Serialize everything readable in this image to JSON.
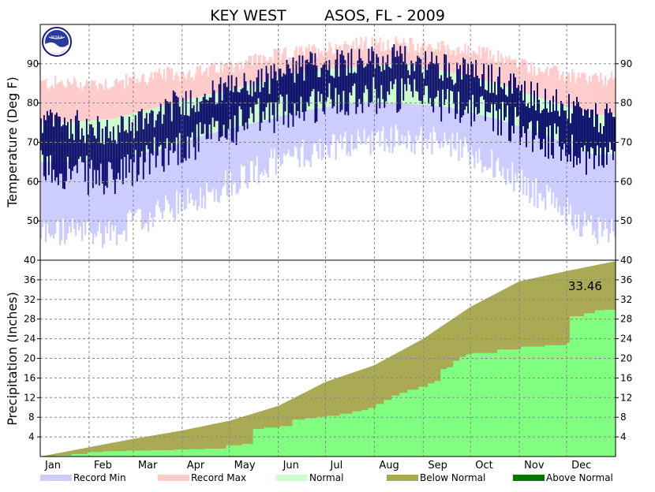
{
  "chart_data": {
    "type": "area",
    "title": "KEY WEST        ASOS, FL - 2009",
    "months": [
      "Jan",
      "Feb",
      "Mar",
      "Apr",
      "May",
      "Jun",
      "Jul",
      "Aug",
      "Sep",
      "Oct",
      "Nov",
      "Dec"
    ],
    "grid": true,
    "legend_position": "bottom",
    "legend": [
      {
        "label": "Record Min",
        "color": "#ccccff"
      },
      {
        "label": "Record Max",
        "color": "#ffcccc"
      },
      {
        "label": "Normal",
        "color": "#ccffcc"
      },
      {
        "label": "Below Normal",
        "color": "#aaaa55"
      },
      {
        "label": "Above Normal",
        "color": "#007700"
      }
    ],
    "temperature": {
      "ylabel": "Temperature (Deg F)",
      "ylim": [
        40,
        100
      ],
      "yticks": [
        50,
        60,
        70,
        80,
        90
      ],
      "colors": {
        "record": "#ffcccc",
        "recmin": "#ccccff",
        "normal": "#ccffcc",
        "observed": "#000066"
      },
      "monthly": [
        {
          "month": "Jan",
          "rec_max": 85,
          "normal_high": 75,
          "normal_low": 65,
          "rec_min": 47,
          "obs_high": 75,
          "obs_low": 63
        },
        {
          "month": "Feb",
          "rec_max": 85,
          "normal_high": 76,
          "normal_low": 66,
          "rec_min": 47,
          "obs_high": 72,
          "obs_low": 60
        },
        {
          "month": "Mar",
          "rec_max": 87,
          "normal_high": 79,
          "normal_low": 68,
          "rec_min": 52,
          "obs_high": 78,
          "obs_low": 67
        },
        {
          "month": "Apr",
          "rec_max": 88,
          "normal_high": 82,
          "normal_low": 72,
          "rec_min": 57,
          "obs_high": 82,
          "obs_low": 71
        },
        {
          "month": "May",
          "rec_max": 91,
          "normal_high": 85,
          "normal_low": 75,
          "rec_min": 63,
          "obs_high": 85,
          "obs_low": 76
        },
        {
          "month": "Jun",
          "rec_max": 93,
          "normal_high": 88,
          "normal_low": 78,
          "rec_min": 67,
          "obs_high": 89,
          "obs_low": 79
        },
        {
          "month": "Jul",
          "rec_max": 95,
          "normal_high": 89,
          "normal_low": 80,
          "rec_min": 70,
          "obs_high": 91,
          "obs_low": 82
        },
        {
          "month": "Aug",
          "rec_max": 95,
          "normal_high": 90,
          "normal_low": 80,
          "rec_min": 71,
          "obs_high": 91,
          "obs_low": 82
        },
        {
          "month": "Sep",
          "rec_max": 94,
          "normal_high": 88,
          "normal_low": 79,
          "rec_min": 70,
          "obs_high": 89,
          "obs_low": 80
        },
        {
          "month": "Oct",
          "rec_max": 92,
          "normal_high": 85,
          "normal_low": 76,
          "rec_min": 64,
          "obs_high": 86,
          "obs_low": 77
        },
        {
          "month": "Nov",
          "rec_max": 88,
          "normal_high": 81,
          "normal_low": 72,
          "rec_min": 56,
          "obs_high": 81,
          "obs_low": 71
        },
        {
          "month": "Dec",
          "rec_max": 86,
          "normal_high": 77,
          "normal_low": 67,
          "rec_min": 48,
          "obs_high": 76,
          "obs_low": 66
        }
      ]
    },
    "precipitation": {
      "ylabel": "Precipitation (Inches)",
      "ylim": [
        0,
        40
      ],
      "yticks": [
        4,
        8,
        12,
        16,
        20,
        24,
        28,
        32,
        36,
        40
      ],
      "annotation": "33.46",
      "normal_cumulative": [
        0,
        1.9,
        3.6,
        5.3,
        7.3,
        10.3,
        15.2,
        18.6,
        24.0,
        30.5,
        35.7,
        37.8,
        39.8
      ],
      "observed_cumulative": [
        0,
        1.1,
        1.3,
        1.5,
        2.7,
        6.3,
        8.3,
        10.7,
        14.9,
        21.1,
        23.2,
        29.8,
        33.46
      ],
      "observed_steps": [
        [
          0,
          0
        ],
        [
          10,
          0.2
        ],
        [
          20,
          0.5
        ],
        [
          30,
          0.9
        ],
        [
          40,
          1.1
        ],
        [
          55,
          1.2
        ],
        [
          70,
          1.3
        ],
        [
          85,
          1.4
        ],
        [
          95,
          1.5
        ],
        [
          105,
          1.6
        ],
        [
          118,
          2.3
        ],
        [
          128,
          2.6
        ],
        [
          135,
          5.6
        ],
        [
          142,
          5.9
        ],
        [
          152,
          6.2
        ],
        [
          160,
          7.5
        ],
        [
          168,
          7.8
        ],
        [
          175,
          8.1
        ],
        [
          182,
          8.3
        ],
        [
          190,
          8.7
        ],
        [
          198,
          9.2
        ],
        [
          204,
          9.5
        ],
        [
          208,
          9.9
        ],
        [
          213,
          10.7
        ],
        [
          218,
          11.5
        ],
        [
          223,
          12.4
        ],
        [
          228,
          13.0
        ],
        [
          233,
          13.6
        ],
        [
          240,
          14.2
        ],
        [
          246,
          14.9
        ],
        [
          250,
          15.4
        ],
        [
          254,
          17.8
        ],
        [
          258,
          18.2
        ],
        [
          262,
          19.5
        ],
        [
          266,
          20.3
        ],
        [
          270,
          20.8
        ],
        [
          274,
          21.1
        ],
        [
          290,
          21.8
        ],
        [
          305,
          22.4
        ],
        [
          320,
          22.7
        ],
        [
          334,
          23.2
        ],
        [
          336,
          28.6
        ],
        [
          345,
          29.2
        ],
        [
          352,
          29.8
        ],
        [
          358,
          29.9
        ],
        [
          365,
          33.46
        ]
      ],
      "colors": {
        "below": "#aaaa55",
        "observed_fill": "#80ff80"
      }
    }
  }
}
